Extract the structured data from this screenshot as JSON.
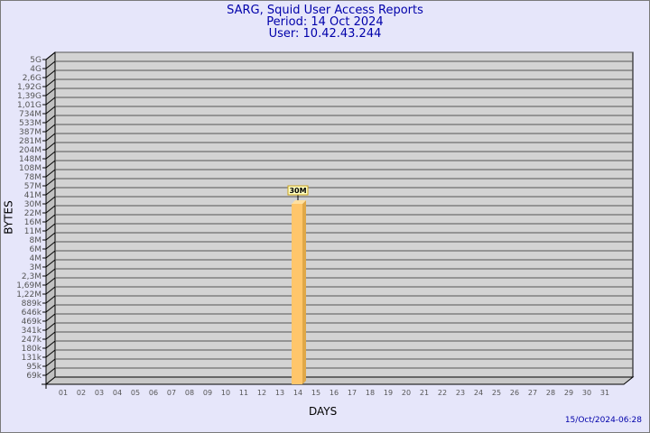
{
  "chart_data": {
    "type": "bar",
    "title": "SARG, Squid User Access Reports",
    "subtitle": [
      "Period: 14 Oct 2024",
      "User: 10.42.43.244"
    ],
    "xlabel": "DAYS",
    "ylabel": "BYTES",
    "y_scale": "log",
    "y_tick_labels": [
      "5G",
      "4G",
      "2,6G",
      "1,92G",
      "1,39G",
      "1,01G",
      "734M",
      "533M",
      "387M",
      "281M",
      "204M",
      "148M",
      "108M",
      "78M",
      "57M",
      "41M",
      "30M",
      "22M",
      "16M",
      "11M",
      "8M",
      "6M",
      "4M",
      "3M",
      "2,3M",
      "1,69M",
      "1,22M",
      "889k",
      "646k",
      "469k",
      "341k",
      "247k",
      "180k",
      "131k",
      "95k",
      "69k"
    ],
    "categories": [
      "01",
      "02",
      "03",
      "04",
      "05",
      "06",
      "07",
      "08",
      "09",
      "10",
      "11",
      "12",
      "13",
      "14",
      "15",
      "16",
      "17",
      "18",
      "19",
      "20",
      "21",
      "22",
      "23",
      "24",
      "25",
      "26",
      "27",
      "28",
      "29",
      "30",
      "31"
    ],
    "bars": [
      {
        "day": "14",
        "value_label": "30M"
      }
    ],
    "bar_color": "#ffc66b",
    "grid": true,
    "footer": "15/Oct/2024-06:28"
  }
}
